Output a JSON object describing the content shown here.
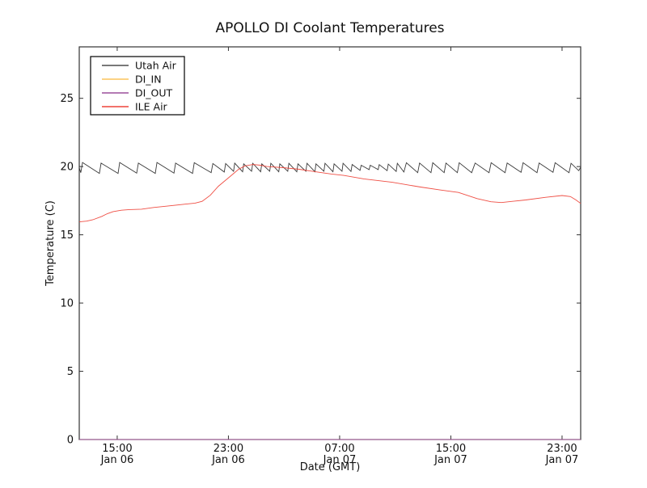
{
  "figure": {
    "background": "#ffffff",
    "border_color": "#333333"
  },
  "chart_data": {
    "type": "line",
    "title": "APOLLO DI Coolant Temperatures",
    "xlabel": "Date (GMT)",
    "ylabel": "Temperature (C)",
    "x_units": "hours, 0 = Jan 06 00:00 GMT",
    "xlim": [
      12.27,
      48.34
    ],
    "ylim": [
      0,
      28.77
    ],
    "grid": false,
    "legend": {
      "position": "upper left",
      "border": true
    },
    "xticks": [
      {
        "value": 15,
        "line1": "15:00",
        "line2": "Jan 06"
      },
      {
        "value": 23,
        "line1": "23:00",
        "line2": "Jan 06"
      },
      {
        "value": 31,
        "line1": "07:00",
        "line2": "Jan 07"
      },
      {
        "value": 39,
        "line1": "15:00",
        "line2": "Jan 07"
      },
      {
        "value": 47,
        "line1": "23:00",
        "line2": "Jan 07"
      }
    ],
    "yticks": [
      {
        "value": 0,
        "label": "0"
      },
      {
        "value": 5,
        "label": "5"
      },
      {
        "value": 10,
        "label": "10"
      },
      {
        "value": 15,
        "label": "15"
      },
      {
        "value": 20,
        "label": "20"
      },
      {
        "value": 25,
        "label": "25"
      }
    ],
    "series": [
      {
        "name": "Utah Air",
        "color": "#4d4d4d",
        "plot_color": "#2e2e2e",
        "points": [
          [
            12.27,
            19.9
          ],
          [
            12.38,
            19.55
          ],
          [
            12.5,
            20.3
          ],
          [
            13.72,
            19.5
          ],
          [
            13.84,
            20.25
          ],
          [
            15.06,
            19.5
          ],
          [
            15.18,
            20.3
          ],
          [
            16.4,
            19.52
          ],
          [
            16.52,
            20.25
          ],
          [
            17.74,
            19.5
          ],
          [
            17.86,
            20.3
          ],
          [
            19.08,
            19.52
          ],
          [
            19.2,
            20.25
          ],
          [
            20.42,
            19.5
          ],
          [
            20.54,
            20.28
          ],
          [
            21.76,
            19.55
          ],
          [
            21.88,
            20.22
          ],
          [
            22.7,
            19.6
          ],
          [
            22.8,
            20.22
          ],
          [
            23.37,
            19.65
          ],
          [
            23.45,
            20.25
          ],
          [
            24.02,
            19.62
          ],
          [
            24.1,
            20.2
          ],
          [
            24.67,
            19.66
          ],
          [
            24.75,
            20.24
          ],
          [
            25.32,
            19.62
          ],
          [
            25.4,
            20.2
          ],
          [
            25.97,
            19.66
          ],
          [
            26.05,
            20.24
          ],
          [
            26.62,
            19.62
          ],
          [
            26.7,
            20.2
          ],
          [
            27.27,
            19.66
          ],
          [
            27.35,
            20.24
          ],
          [
            27.92,
            19.62
          ],
          [
            28.0,
            20.2
          ],
          [
            28.57,
            19.66
          ],
          [
            28.65,
            20.24
          ],
          [
            29.22,
            19.62
          ],
          [
            29.3,
            20.2
          ],
          [
            29.87,
            19.66
          ],
          [
            29.95,
            20.24
          ],
          [
            30.52,
            19.62
          ],
          [
            30.6,
            20.2
          ],
          [
            31.17,
            19.66
          ],
          [
            31.25,
            20.24
          ],
          [
            31.82,
            19.64
          ],
          [
            31.9,
            20.15
          ],
          [
            32.47,
            19.72
          ],
          [
            32.55,
            20.1
          ],
          [
            33.12,
            19.78
          ],
          [
            33.2,
            20.1
          ],
          [
            33.77,
            19.78
          ],
          [
            33.85,
            20.14
          ],
          [
            34.42,
            19.7
          ],
          [
            34.5,
            20.18
          ],
          [
            35.07,
            19.64
          ],
          [
            35.15,
            20.24
          ],
          [
            35.62,
            19.6
          ],
          [
            35.8,
            20.28
          ],
          [
            36.62,
            19.55
          ],
          [
            36.75,
            20.26
          ],
          [
            37.57,
            19.55
          ],
          [
            37.7,
            20.28
          ],
          [
            38.52,
            19.55
          ],
          [
            38.65,
            20.26
          ],
          [
            39.47,
            19.55
          ],
          [
            39.6,
            20.28
          ],
          [
            40.5,
            19.55
          ],
          [
            40.75,
            20.26
          ],
          [
            41.75,
            19.55
          ],
          [
            41.9,
            20.28
          ],
          [
            42.9,
            19.55
          ],
          [
            43.05,
            20.26
          ],
          [
            44.05,
            19.58
          ],
          [
            44.2,
            20.28
          ],
          [
            45.2,
            19.55
          ],
          [
            45.35,
            20.26
          ],
          [
            46.35,
            19.58
          ],
          [
            46.5,
            20.28
          ],
          [
            47.5,
            19.55
          ],
          [
            47.65,
            20.24
          ],
          [
            48.2,
            19.7
          ],
          [
            48.34,
            19.95
          ]
        ]
      },
      {
        "name": "DI_IN",
        "color": "#fbc45c",
        "plot_color": "#fbc45c",
        "points": [
          [
            12.27,
            0
          ],
          [
            48.34,
            0
          ]
        ]
      },
      {
        "name": "DI_OUT",
        "color": "#9c4f9c",
        "plot_color": "#9c4f9c",
        "points": [
          [
            12.27,
            0
          ],
          [
            48.34,
            0
          ]
        ]
      },
      {
        "name": "ILE Air",
        "color": "#ee443a",
        "plot_color": "#ee443a",
        "points": [
          [
            12.27,
            15.95
          ],
          [
            12.8,
            16.0
          ],
          [
            13.25,
            16.1
          ],
          [
            13.9,
            16.35
          ],
          [
            14.3,
            16.55
          ],
          [
            14.71,
            16.7
          ],
          [
            15.3,
            16.8
          ],
          [
            15.87,
            16.85
          ],
          [
            16.75,
            16.88
          ],
          [
            17.62,
            17.0
          ],
          [
            18.6,
            17.1
          ],
          [
            19.95,
            17.25
          ],
          [
            20.6,
            17.32
          ],
          [
            21.11,
            17.45
          ],
          [
            21.7,
            17.9
          ],
          [
            22.27,
            18.55
          ],
          [
            22.8,
            19.0
          ],
          [
            23.15,
            19.3
          ],
          [
            23.73,
            19.8
          ],
          [
            24.19,
            20.05
          ],
          [
            24.77,
            20.15
          ],
          [
            25.3,
            20.1
          ],
          [
            25.76,
            20.0
          ],
          [
            26.93,
            19.92
          ],
          [
            28.09,
            19.8
          ],
          [
            29.25,
            19.62
          ],
          [
            30.42,
            19.45
          ],
          [
            31.29,
            19.35
          ],
          [
            32.74,
            19.1
          ],
          [
            34.78,
            18.85
          ],
          [
            36.82,
            18.5
          ],
          [
            38.27,
            18.28
          ],
          [
            39.55,
            18.1
          ],
          [
            40.89,
            17.65
          ],
          [
            41.88,
            17.42
          ],
          [
            42.63,
            17.36
          ],
          [
            44.38,
            17.55
          ],
          [
            45.83,
            17.75
          ],
          [
            47.0,
            17.88
          ],
          [
            47.6,
            17.8
          ],
          [
            48.0,
            17.55
          ],
          [
            48.34,
            17.3
          ]
        ]
      }
    ]
  }
}
